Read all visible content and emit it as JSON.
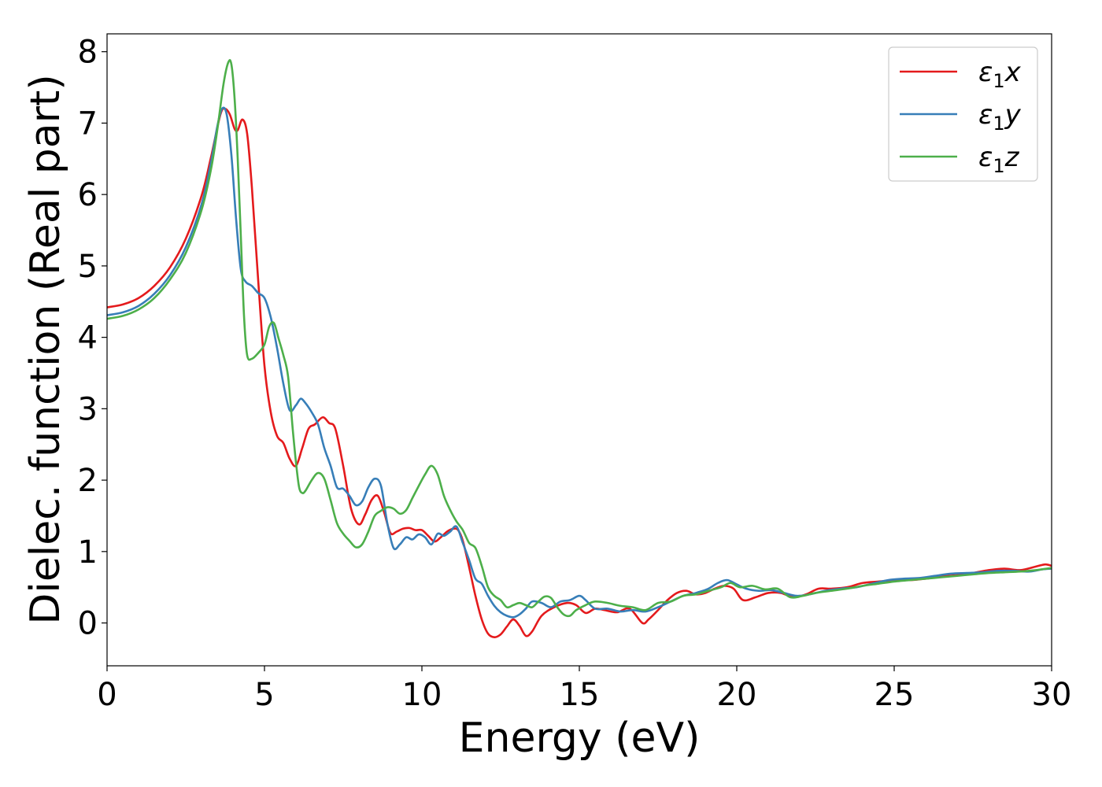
{
  "chart_data": {
    "type": "line",
    "title": "",
    "xlabel": "Energy (eV)",
    "ylabel": "Dielec. function (Real part)",
    "xlim": [
      0,
      30
    ],
    "ylim": [
      -0.6,
      8.25
    ],
    "xticks": [
      0,
      5,
      10,
      15,
      20,
      25,
      30
    ],
    "yticks": [
      0,
      1,
      2,
      3,
      4,
      5,
      6,
      7,
      8
    ],
    "grid": false,
    "legend_position": "top-right",
    "series": [
      {
        "name": "ε₁x",
        "legend_base": "ε",
        "legend_sub": "1",
        "legend_var": "x",
        "color": "#e41a1c",
        "x": [
          0,
          0.5,
          1,
          1.5,
          2,
          2.5,
          3,
          3.3,
          3.6,
          3.75,
          3.9,
          4.05,
          4.15,
          4.3,
          4.45,
          4.6,
          4.8,
          5.0,
          5.2,
          5.4,
          5.6,
          5.8,
          6.0,
          6.2,
          6.4,
          6.6,
          6.85,
          7.05,
          7.25,
          7.5,
          7.75,
          8.0,
          8.2,
          8.4,
          8.6,
          8.8,
          9.0,
          9.2,
          9.4,
          9.6,
          9.8,
          10.0,
          10.2,
          10.4,
          10.6,
          10.8,
          11.0,
          11.15,
          11.3,
          11.5,
          11.7,
          11.9,
          12.1,
          12.3,
          12.5,
          12.7,
          12.9,
          13.1,
          13.3,
          13.5,
          13.8,
          14.2,
          14.6,
          14.9,
          15.2,
          15.5,
          15.8,
          16.2,
          16.6,
          17.0,
          17.2,
          17.5,
          17.8,
          18.1,
          18.4,
          18.7,
          19.0,
          19.3,
          19.6,
          19.9,
          20.2,
          20.6,
          21.0,
          21.4,
          21.8,
          22.2,
          22.6,
          23.0,
          23.5,
          24.0,
          24.5,
          25.0,
          25.5,
          26.0,
          26.5,
          27.0,
          27.5,
          28.0,
          28.5,
          29.0,
          29.5,
          29.8,
          30
        ],
        "y": [
          4.42,
          4.46,
          4.55,
          4.72,
          4.98,
          5.38,
          5.98,
          6.52,
          7.12,
          7.2,
          7.12,
          6.92,
          6.9,
          7.05,
          6.85,
          6.1,
          4.8,
          3.6,
          2.95,
          2.62,
          2.52,
          2.3,
          2.2,
          2.45,
          2.72,
          2.78,
          2.88,
          2.8,
          2.72,
          2.2,
          1.6,
          1.38,
          1.52,
          1.72,
          1.78,
          1.55,
          1.26,
          1.28,
          1.32,
          1.33,
          1.3,
          1.3,
          1.22,
          1.14,
          1.2,
          1.28,
          1.32,
          1.3,
          1.15,
          0.78,
          0.38,
          0.05,
          -0.15,
          -0.2,
          -0.16,
          -0.05,
          0.05,
          -0.04,
          -0.18,
          -0.12,
          0.1,
          0.22,
          0.28,
          0.25,
          0.14,
          0.2,
          0.18,
          0.15,
          0.2,
          0.0,
          0.05,
          0.18,
          0.32,
          0.42,
          0.45,
          0.4,
          0.42,
          0.48,
          0.52,
          0.48,
          0.32,
          0.36,
          0.42,
          0.42,
          0.36,
          0.4,
          0.48,
          0.48,
          0.5,
          0.56,
          0.58,
          0.6,
          0.6,
          0.62,
          0.65,
          0.67,
          0.7,
          0.74,
          0.76,
          0.74,
          0.79,
          0.82,
          0.8
        ]
      },
      {
        "name": "ε₁y",
        "legend_base": "ε",
        "legend_sub": "1",
        "legend_var": "y",
        "color": "#377eb8",
        "x": [
          0,
          0.5,
          1,
          1.5,
          2,
          2.5,
          3,
          3.3,
          3.5,
          3.65,
          3.8,
          3.95,
          4.1,
          4.25,
          4.4,
          4.6,
          4.8,
          5.0,
          5.2,
          5.4,
          5.6,
          5.8,
          6.0,
          6.15,
          6.3,
          6.5,
          6.7,
          6.9,
          7.1,
          7.3,
          7.5,
          7.7,
          7.9,
          8.1,
          8.3,
          8.5,
          8.7,
          8.9,
          9.1,
          9.3,
          9.5,
          9.7,
          9.9,
          10.1,
          10.3,
          10.5,
          10.7,
          10.9,
          11.1,
          11.3,
          11.5,
          11.7,
          11.9,
          12.1,
          12.3,
          12.5,
          12.7,
          12.9,
          13.1,
          13.3,
          13.5,
          13.8,
          14.1,
          14.4,
          14.7,
          15.0,
          15.2,
          15.5,
          15.9,
          16.3,
          16.7,
          17.1,
          17.5,
          17.9,
          18.3,
          18.7,
          19.1,
          19.4,
          19.7,
          20.0,
          20.3,
          20.7,
          21.1,
          21.5,
          21.9,
          22.3,
          22.8,
          23.3,
          23.8,
          24.3,
          24.8,
          25.3,
          25.8,
          26.3,
          26.8,
          27.3,
          27.8,
          28.3,
          28.8,
          29.3,
          29.7,
          30
        ],
        "y": [
          4.31,
          4.35,
          4.44,
          4.61,
          4.87,
          5.26,
          5.86,
          6.45,
          6.95,
          7.2,
          7.12,
          6.55,
          5.65,
          4.95,
          4.78,
          4.72,
          4.62,
          4.55,
          4.28,
          3.85,
          3.35,
          2.98,
          3.05,
          3.14,
          3.08,
          2.95,
          2.78,
          2.45,
          2.2,
          1.9,
          1.88,
          1.78,
          1.65,
          1.7,
          1.9,
          2.02,
          1.92,
          1.4,
          1.05,
          1.1,
          1.2,
          1.17,
          1.24,
          1.2,
          1.1,
          1.25,
          1.22,
          1.28,
          1.35,
          1.12,
          0.88,
          0.62,
          0.55,
          0.38,
          0.24,
          0.15,
          0.1,
          0.08,
          0.12,
          0.2,
          0.3,
          0.28,
          0.22,
          0.3,
          0.32,
          0.38,
          0.32,
          0.2,
          0.2,
          0.16,
          0.18,
          0.16,
          0.22,
          0.3,
          0.38,
          0.42,
          0.48,
          0.56,
          0.6,
          0.54,
          0.48,
          0.45,
          0.46,
          0.42,
          0.38,
          0.4,
          0.45,
          0.48,
          0.5,
          0.55,
          0.6,
          0.62,
          0.63,
          0.66,
          0.69,
          0.7,
          0.71,
          0.73,
          0.73,
          0.72,
          0.75,
          0.76
        ]
      },
      {
        "name": "ε₁z",
        "legend_base": "ε",
        "legend_sub": "1",
        "legend_var": "z",
        "color": "#4daf4a",
        "x": [
          0,
          0.5,
          1,
          1.5,
          2,
          2.5,
          3,
          3.3,
          3.5,
          3.7,
          3.85,
          3.95,
          4.05,
          4.15,
          4.25,
          4.35,
          4.45,
          4.6,
          4.8,
          5.0,
          5.15,
          5.3,
          5.45,
          5.6,
          5.75,
          5.9,
          6.0,
          6.1,
          6.2,
          6.3,
          6.5,
          6.7,
          6.9,
          7.1,
          7.3,
          7.5,
          7.7,
          7.9,
          8.1,
          8.3,
          8.5,
          8.7,
          8.9,
          9.1,
          9.3,
          9.5,
          9.7,
          9.9,
          10.1,
          10.3,
          10.5,
          10.7,
          10.9,
          11.1,
          11.3,
          11.5,
          11.7,
          11.9,
          12.1,
          12.3,
          12.5,
          12.7,
          12.9,
          13.1,
          13.3,
          13.5,
          13.7,
          13.9,
          14.1,
          14.3,
          14.5,
          14.7,
          14.9,
          15.2,
          15.5,
          15.9,
          16.3,
          16.7,
          17.1,
          17.5,
          17.9,
          18.3,
          18.7,
          19.1,
          19.5,
          19.8,
          20.1,
          20.5,
          20.9,
          21.3,
          21.7,
          22.1,
          22.5,
          23.0,
          23.5,
          24.0,
          24.5,
          25.0,
          25.5,
          26.0,
          26.5,
          27.0,
          27.5,
          28.0,
          28.5,
          29.0,
          29.5,
          30
        ],
        "y": [
          4.26,
          4.3,
          4.39,
          4.55,
          4.81,
          5.18,
          5.78,
          6.35,
          6.9,
          7.55,
          7.85,
          7.82,
          7.35,
          6.5,
          5.4,
          4.3,
          3.75,
          3.7,
          3.78,
          3.9,
          4.15,
          4.2,
          3.98,
          3.75,
          3.45,
          2.7,
          2.25,
          1.9,
          1.82,
          1.85,
          2.0,
          2.1,
          2.02,
          1.72,
          1.4,
          1.25,
          1.15,
          1.06,
          1.1,
          1.28,
          1.5,
          1.57,
          1.62,
          1.6,
          1.53,
          1.58,
          1.75,
          1.92,
          2.08,
          2.2,
          2.08,
          1.78,
          1.58,
          1.42,
          1.3,
          1.12,
          1.05,
          0.8,
          0.5,
          0.38,
          0.32,
          0.22,
          0.25,
          0.28,
          0.25,
          0.22,
          0.3,
          0.37,
          0.35,
          0.22,
          0.12,
          0.1,
          0.18,
          0.25,
          0.3,
          0.28,
          0.24,
          0.22,
          0.18,
          0.28,
          0.3,
          0.38,
          0.4,
          0.45,
          0.5,
          0.56,
          0.5,
          0.52,
          0.47,
          0.48,
          0.36,
          0.38,
          0.42,
          0.45,
          0.48,
          0.52,
          0.55,
          0.58,
          0.6,
          0.62,
          0.64,
          0.66,
          0.68,
          0.7,
          0.71,
          0.72,
          0.74,
          0.77
        ]
      }
    ]
  }
}
